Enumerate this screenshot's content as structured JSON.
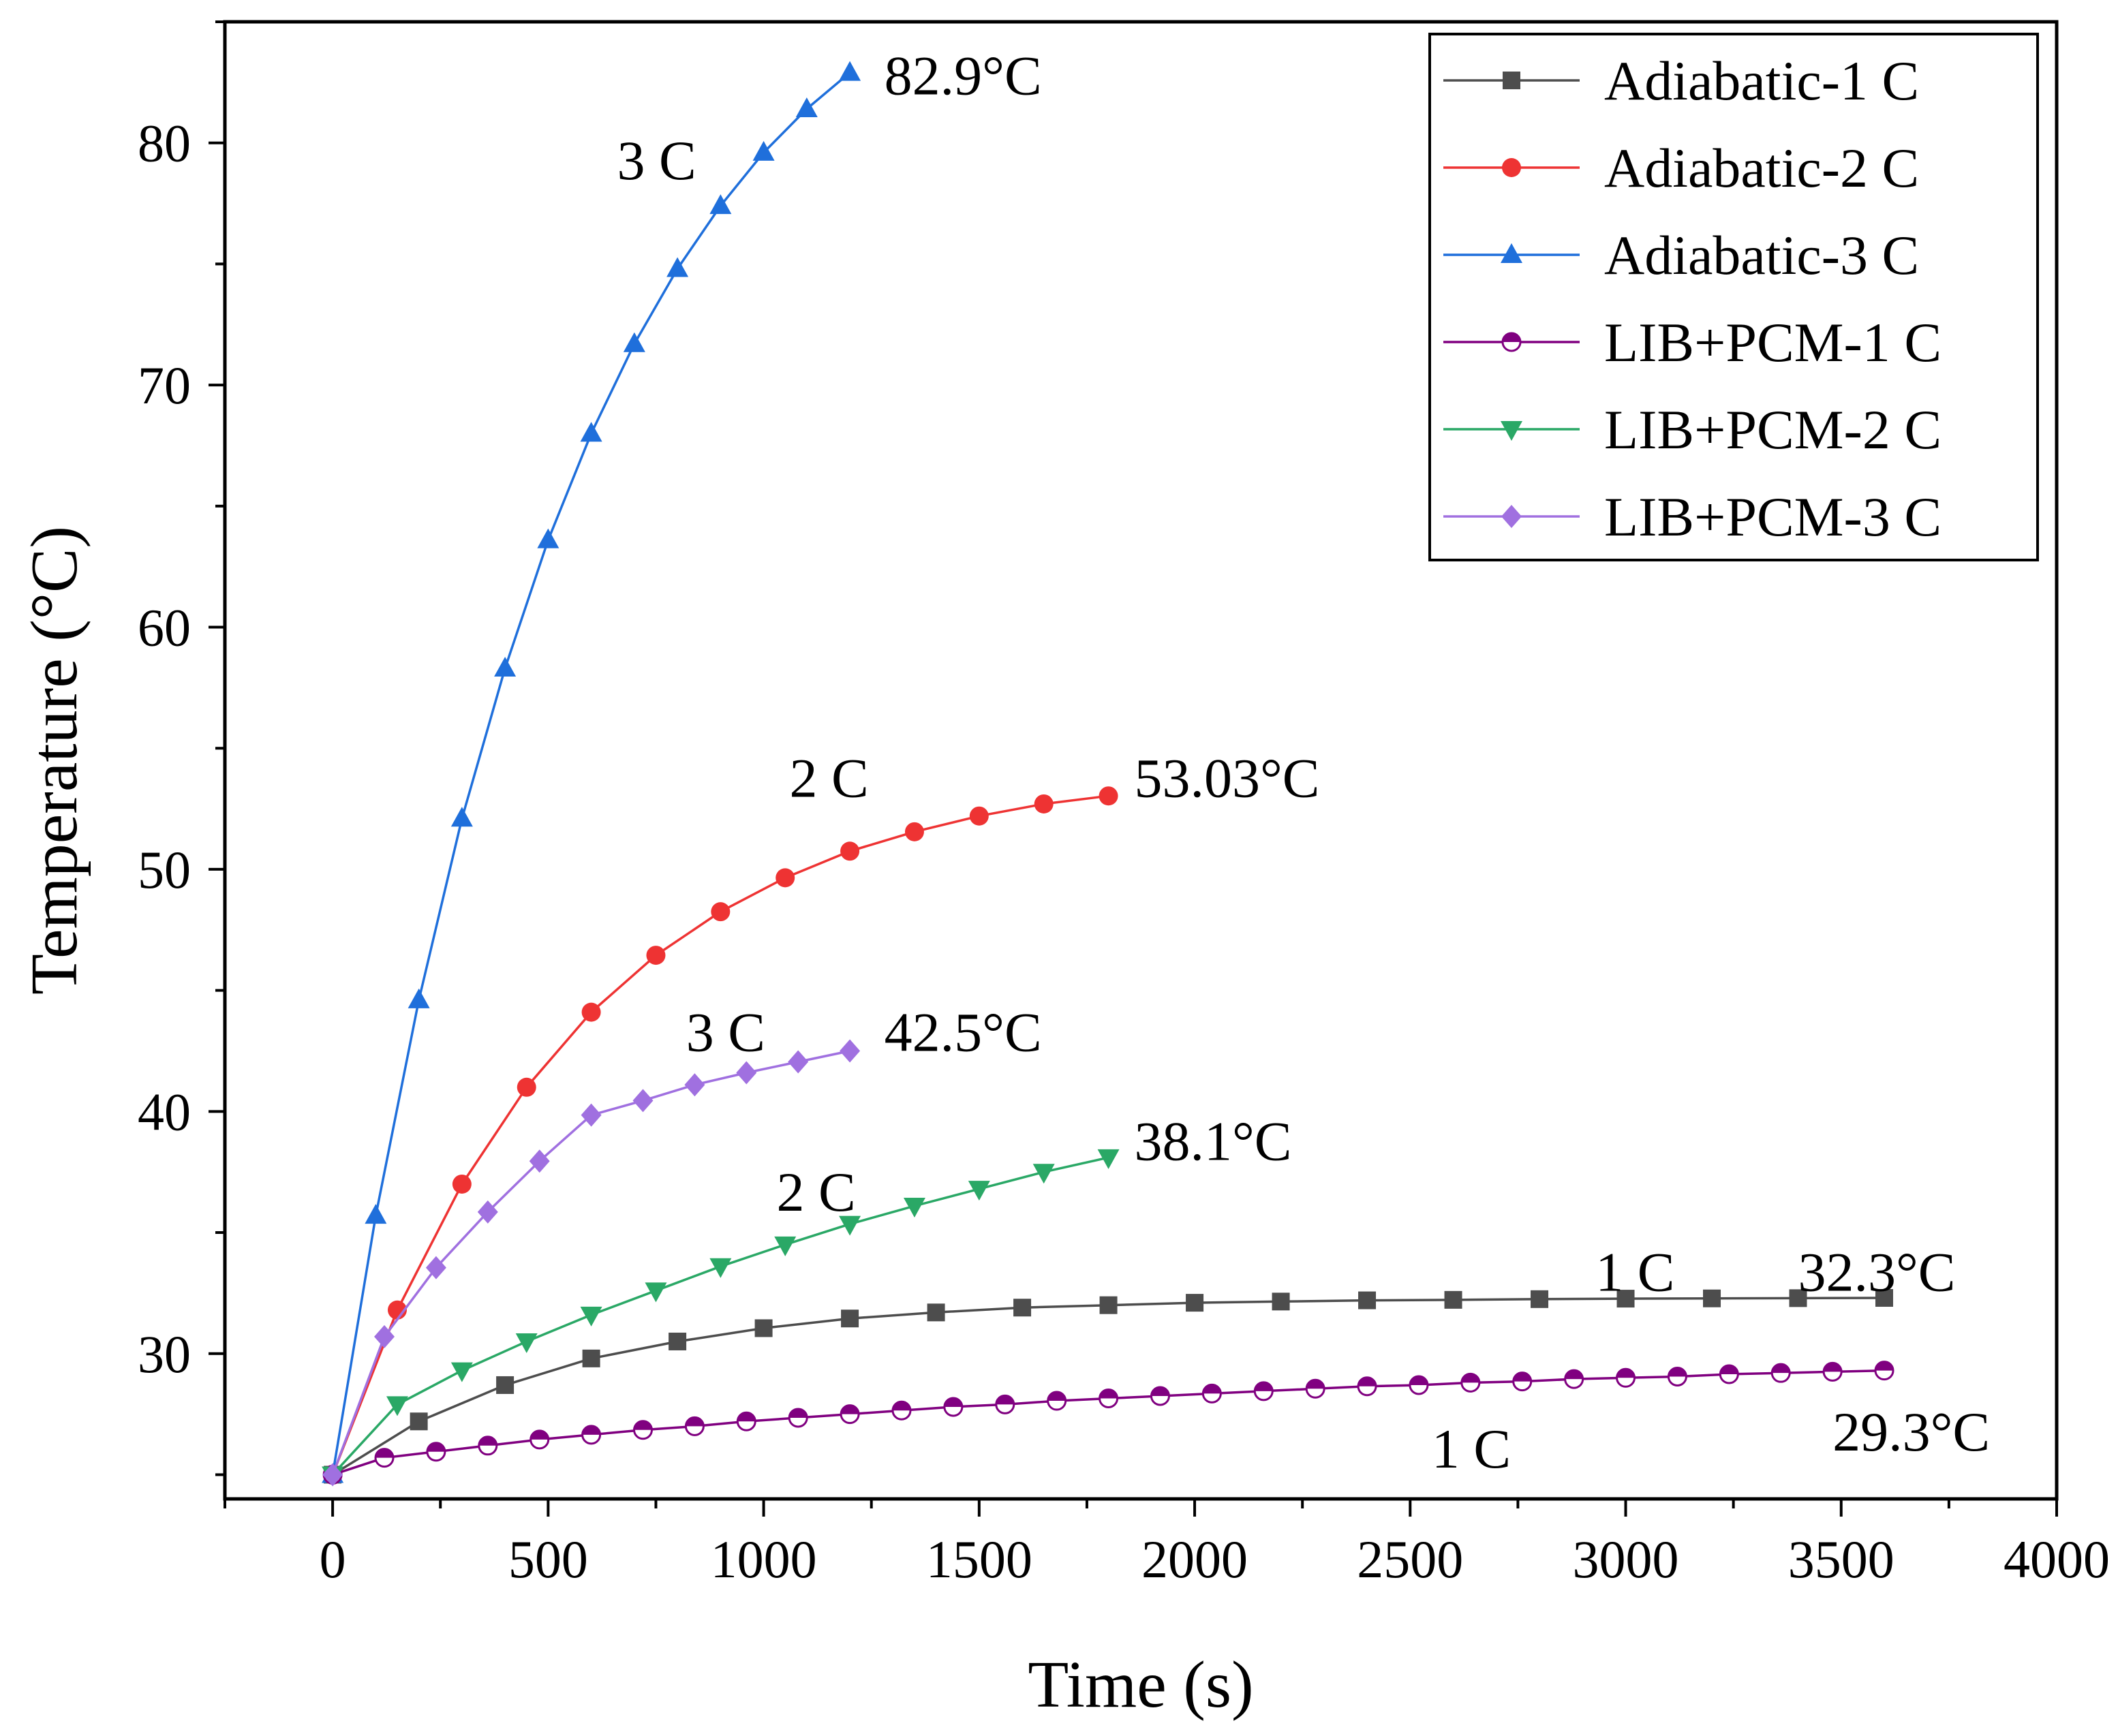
{
  "chart_data": {
    "type": "line",
    "xlabel": "Time (s)",
    "ylabel": "Temperature (°C)",
    "xlim": [
      -250,
      4000
    ],
    "ylim": [
      24,
      85
    ],
    "xticks": [
      0,
      500,
      1000,
      1500,
      2000,
      2500,
      3000,
      3500,
      4000
    ],
    "xtick_labels": [
      "0",
      "500",
      "1000",
      "1500",
      "2000",
      "2500",
      "3000",
      "3500",
      "4000"
    ],
    "yticks": [
      30,
      40,
      50,
      60,
      70,
      80
    ],
    "ytick_labels": [
      "30",
      "40",
      "50",
      "60",
      "70",
      "80"
    ],
    "legend_position": "top-right",
    "series": [
      {
        "name": "Adiabatic-1 C",
        "color": "#4d4d4d",
        "marker": "square",
        "x": [
          0,
          200,
          400,
          600,
          800,
          1000,
          1200,
          1400,
          1600,
          1800,
          2000,
          2200,
          2400,
          2600,
          2800,
          3000,
          3200,
          3400,
          3600
        ],
        "y": [
          25.0,
          27.2,
          28.7,
          29.8,
          30.5,
          31.05,
          31.45,
          31.7,
          31.9,
          32.0,
          32.1,
          32.15,
          32.2,
          32.22,
          32.25,
          32.27,
          32.28,
          32.29,
          32.3
        ]
      },
      {
        "name": "Adiabatic-2 C",
        "color": "#ee3333",
        "marker": "circle",
        "x": [
          0,
          150,
          300,
          450,
          600,
          750,
          900,
          1050,
          1200,
          1350,
          1500,
          1650,
          1800
        ],
        "y": [
          25.0,
          31.8,
          37.0,
          41.0,
          44.1,
          46.45,
          48.25,
          49.65,
          50.75,
          51.55,
          52.2,
          52.7,
          53.03
        ]
      },
      {
        "name": "Adiabatic-3 C",
        "color": "#1f6fdb",
        "marker": "triangle-up",
        "x": [
          0,
          100,
          200,
          300,
          400,
          500,
          600,
          700,
          800,
          900,
          1000,
          1100,
          1200
        ],
        "y": [
          25.0,
          35.7,
          44.6,
          52.1,
          58.3,
          63.6,
          68.0,
          71.7,
          74.8,
          77.4,
          79.6,
          81.4,
          82.9
        ]
      },
      {
        "name": "LIB+PCM-1 C",
        "color": "#800080",
        "marker": "half-circle",
        "x": [
          0,
          120,
          240,
          360,
          480,
          600,
          720,
          840,
          960,
          1080,
          1200,
          1320,
          1440,
          1560,
          1680,
          1800,
          1920,
          2040,
          2160,
          2280,
          2400,
          2520,
          2640,
          2760,
          2880,
          3000,
          3120,
          3240,
          3360,
          3480,
          3600
        ],
        "y": [
          25.0,
          25.7,
          25.95,
          26.2,
          26.45,
          26.65,
          26.85,
          27.0,
          27.2,
          27.35,
          27.5,
          27.65,
          27.8,
          27.9,
          28.05,
          28.15,
          28.25,
          28.35,
          28.45,
          28.55,
          28.65,
          28.7,
          28.8,
          28.85,
          28.95,
          29.0,
          29.05,
          29.15,
          29.2,
          29.25,
          29.3
        ]
      },
      {
        "name": "LIB+PCM-2 C",
        "color": "#2aa866",
        "marker": "triangle-down",
        "x": [
          0,
          150,
          300,
          450,
          600,
          750,
          900,
          1050,
          1200,
          1350,
          1500,
          1650,
          1800
        ],
        "y": [
          25.0,
          27.9,
          29.3,
          30.5,
          31.6,
          32.6,
          33.6,
          34.5,
          35.35,
          36.1,
          36.8,
          37.5,
          38.1
        ]
      },
      {
        "name": "LIB+PCM-3 C",
        "color": "#a070e0",
        "marker": "diamond",
        "x": [
          0,
          120,
          240,
          360,
          480,
          600,
          720,
          840,
          960,
          1080,
          1200
        ],
        "y": [
          25.0,
          30.7,
          33.55,
          35.85,
          37.95,
          39.85,
          40.45,
          41.1,
          41.6,
          42.05,
          42.5
        ]
      }
    ],
    "annotations": [
      {
        "id": "ann-adiabatic-3c-rate",
        "text": "3 C",
        "x": 660,
        "y": 78.5
      },
      {
        "id": "ann-adiabatic-3c-value",
        "text": "82.9°C",
        "x": 1280,
        "y": 82.0
      },
      {
        "id": "ann-adiabatic-2c-rate",
        "text": "2 C",
        "x": 1060,
        "y": 53.0
      },
      {
        "id": "ann-adiabatic-2c-value",
        "text": "53.03°C",
        "x": 1860,
        "y": 53.0
      },
      {
        "id": "ann-pcm-3c-rate",
        "text": "3 C",
        "x": 820,
        "y": 42.5
      },
      {
        "id": "ann-pcm-3c-value",
        "text": "42.5°C",
        "x": 1280,
        "y": 42.5
      },
      {
        "id": "ann-pcm-2c-rate",
        "text": "2 C",
        "x": 1030,
        "y": 35.9
      },
      {
        "id": "ann-pcm-2c-value",
        "text": "38.1°C",
        "x": 1860,
        "y": 38.0
      },
      {
        "id": "ann-adiabatic-1c-rate",
        "text": "1 C",
        "x": 2930,
        "y": 32.6
      },
      {
        "id": "ann-adiabatic-1c-value",
        "text": "32.3°C",
        "x": 3400,
        "y": 32.6
      },
      {
        "id": "ann-pcm-1c-rate",
        "text": "1 C",
        "x": 2550,
        "y": 25.3
      },
      {
        "id": "ann-pcm-1c-value",
        "text": "29.3°C",
        "x": 3480,
        "y": 26.0
      }
    ]
  }
}
